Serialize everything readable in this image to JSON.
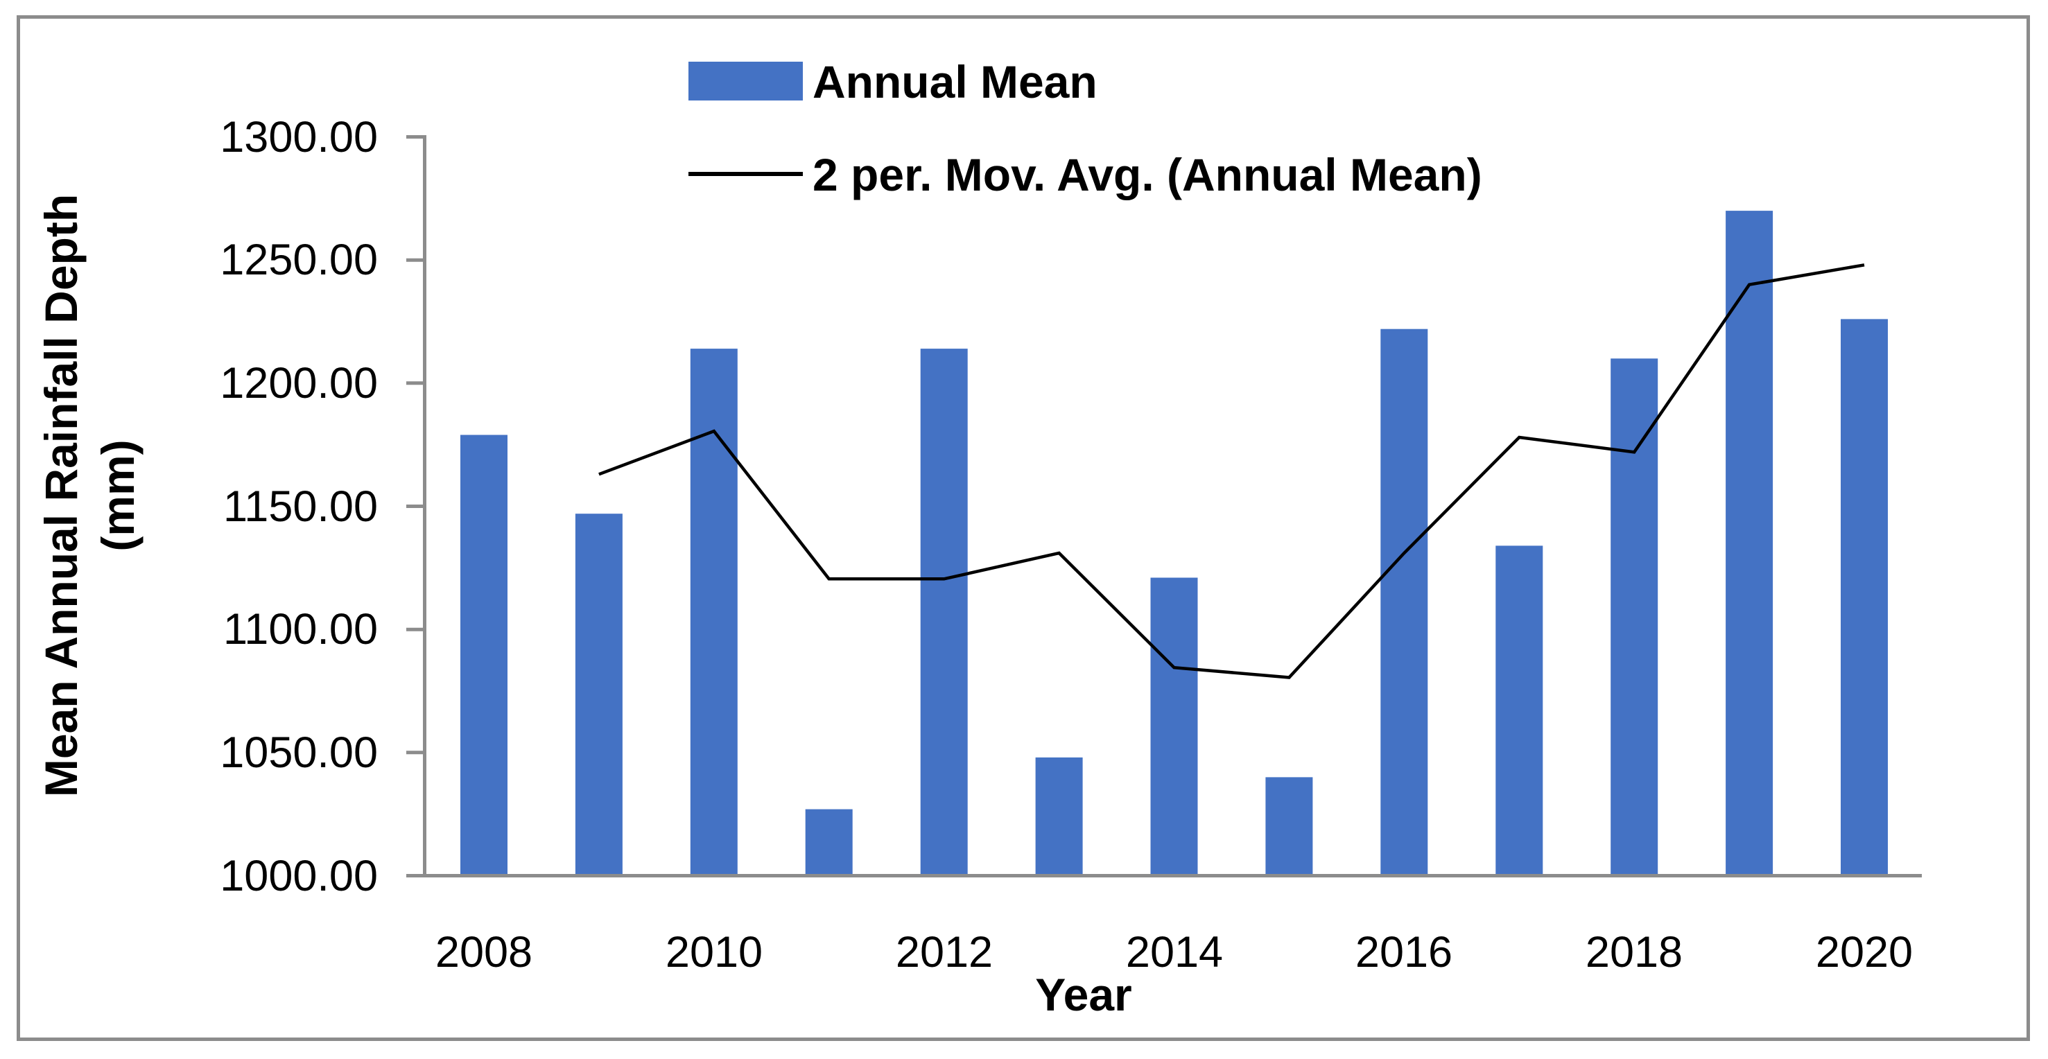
{
  "chart_data": {
    "type": "bar",
    "title": "",
    "categories": [
      "2008",
      "2009",
      "2010",
      "2011",
      "2012",
      "2013",
      "2014",
      "2015",
      "2016",
      "2017",
      "2018",
      "2019",
      "2020"
    ],
    "series": [
      {
        "name": "Annual Mean",
        "type": "bar",
        "values": [
          1179,
          1147,
          1214,
          1027,
          1214,
          1048,
          1121,
          1040,
          1222,
          1134,
          1210,
          1270,
          1226
        ]
      },
      {
        "name": "2 per. Mov. Avg. (Annual Mean)",
        "type": "line",
        "x_categories": [
          "2009",
          "2010",
          "2011",
          "2012",
          "2013",
          "2014",
          "2015",
          "2016",
          "2017",
          "2018",
          "2019",
          "2020"
        ],
        "values": [
          1163,
          1180.5,
          1120.5,
          1120.5,
          1131,
          1084.5,
          1080.5,
          1131,
          1178,
          1172,
          1240,
          1248
        ]
      }
    ],
    "xlabel": "Year",
    "ylabel": "Mean Annual Rainfall Depth (mm)",
    "ylabel_lines": [
      "Mean Annual Rainfall Depth",
      "(mm)"
    ],
    "ylim": [
      1000,
      1300
    ],
    "y_tick_step": 50,
    "y_tick_labels": [
      "1300.00",
      "1250.00",
      "1200.00",
      "1150.00",
      "1100.00",
      "1050.00",
      "1000.00"
    ],
    "x_tick_labels": [
      "2008",
      "2010",
      "2012",
      "2014",
      "2016",
      "2018",
      "2020"
    ],
    "legend": [
      "Annual Mean",
      "2 per. Mov. Avg. (Annual Mean)"
    ],
    "legend_position": "top",
    "grid": false,
    "colors": {
      "bar": "#4472C4",
      "line": "#000000",
      "axis": "#8C8C8C",
      "border": "#8C8C8C",
      "text": "#000000",
      "background": "#FFFFFF"
    }
  }
}
